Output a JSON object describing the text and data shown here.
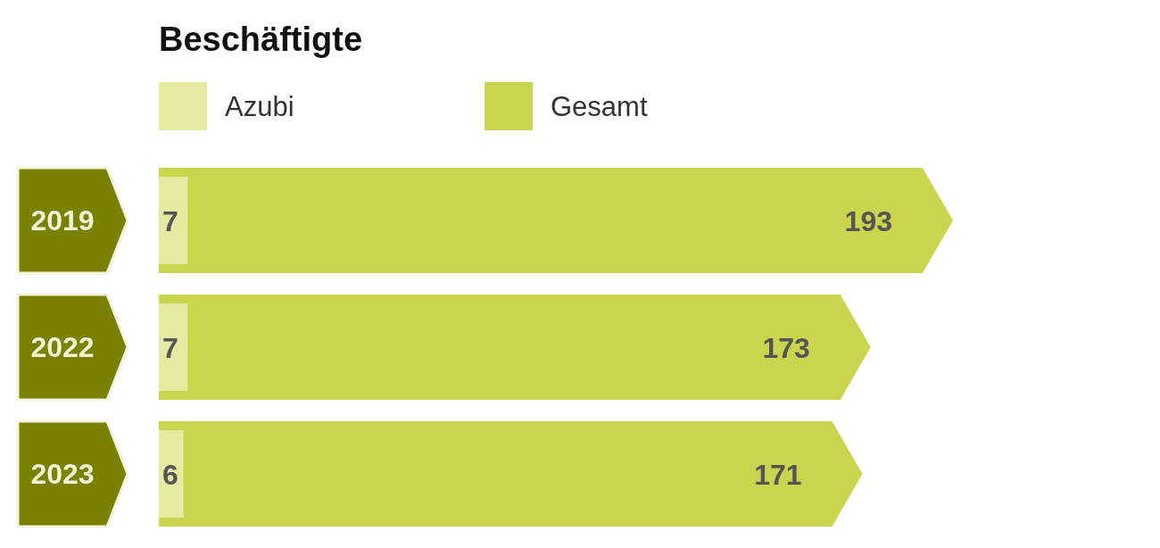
{
  "chart_data": {
    "type": "bar",
    "orientation": "horizontal",
    "title": "Beschäftigte",
    "categories": [
      "2019",
      "2022",
      "2023"
    ],
    "series": [
      {
        "name": "Gesamt",
        "color": "#cad44c",
        "values": [
          193,
          173,
          171
        ]
      },
      {
        "name": "Azubi",
        "color": "#e6eaa0",
        "values": [
          7,
          7,
          6
        ]
      }
    ],
    "data_labels": true,
    "legend": "top left",
    "grid": false
  }
}
